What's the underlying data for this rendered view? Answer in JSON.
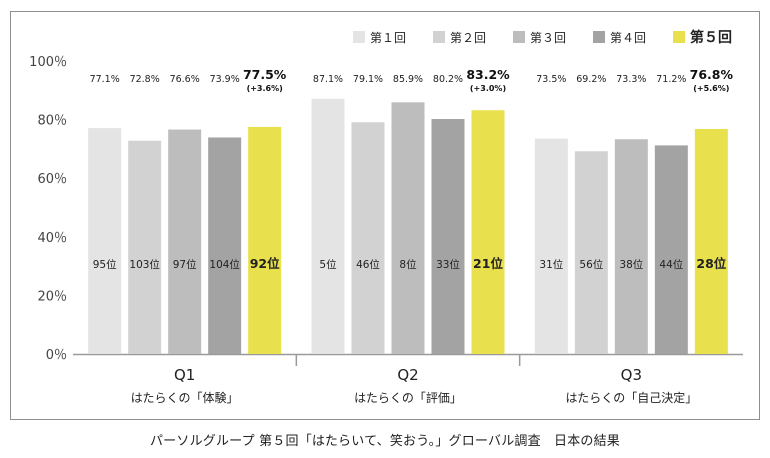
{
  "footer": "パーソルグループ 第５回「はたらいて、笑おう。」グローバル調査　日本の結果",
  "chart_data": {
    "type": "bar",
    "y_unit": "%",
    "ylim": [
      0,
      100
    ],
    "yticks": [
      0,
      20,
      40,
      60,
      80,
      100
    ],
    "ytick_labels": [
      "0％",
      "20％",
      "40％",
      "60％",
      "80％",
      "100％"
    ],
    "legend_position": "top-right",
    "series": [
      {
        "name": "第１回",
        "color": "#e4e4e4"
      },
      {
        "name": "第２回",
        "color": "#d2d2d2"
      },
      {
        "name": "第３回",
        "color": "#bdbdbd"
      },
      {
        "name": "第４回",
        "color": "#a3a3a3"
      },
      {
        "name": "第５回",
        "color": "#e8e04d",
        "highlight": true
      }
    ],
    "groups": [
      {
        "label": "Q1",
        "sublabel": "はたらくの「体験」",
        "values": [
          77.1,
          72.8,
          76.6,
          73.9,
          77.5
        ],
        "value_labels": [
          "77.1%",
          "72.8%",
          "76.6%",
          "73.9%",
          "77.5%"
        ],
        "change": "(+3.6%)",
        "ranks": [
          "95位",
          "103位",
          "97位",
          "104位",
          "92位"
        ]
      },
      {
        "label": "Q2",
        "sublabel": "はたらくの「評価」",
        "values": [
          87.1,
          79.1,
          85.9,
          80.2,
          83.2
        ],
        "value_labels": [
          "87.1%",
          "79.1%",
          "85.9%",
          "80.2%",
          "83.2%"
        ],
        "change": "(+3.0%)",
        "ranks": [
          "5位",
          "46位",
          "8位",
          "33位",
          "21位"
        ]
      },
      {
        "label": "Q3",
        "sublabel": "はたらくの「自己決定」",
        "values": [
          73.5,
          69.2,
          73.3,
          71.2,
          76.8
        ],
        "value_labels": [
          "73.5%",
          "69.2%",
          "73.3%",
          "71.2%",
          "76.8%"
        ],
        "change": "(+5.6%)",
        "ranks": [
          "31位",
          "56位",
          "38位",
          "44位",
          "28位"
        ]
      }
    ]
  }
}
